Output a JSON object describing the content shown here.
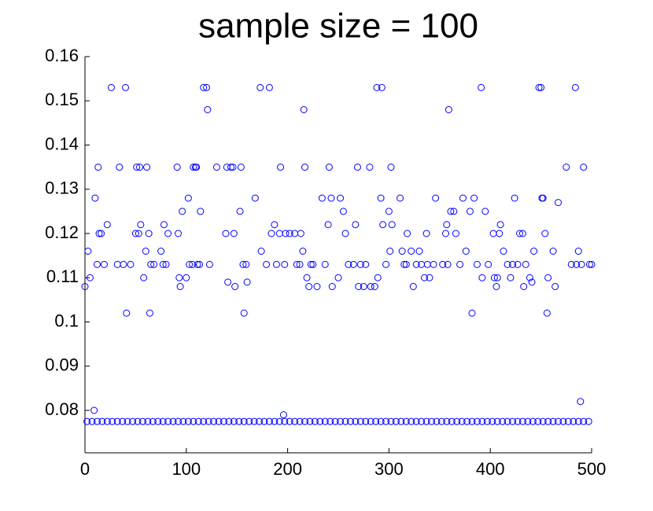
{
  "chart_data": {
    "type": "scatter",
    "title": "sample size = 100",
    "color": "#0000ff",
    "grid": false,
    "xlim": [
      0,
      500
    ],
    "ylim": [
      0.0704,
      0.16
    ],
    "xticks": [
      0,
      100,
      200,
      300,
      400,
      500
    ],
    "yticks": [
      0.16,
      0.15,
      0.14,
      0.13,
      0.12,
      0.11,
      0.1,
      0.09,
      0.08
    ],
    "x": [
      0,
      3,
      5,
      9,
      10,
      12,
      13,
      14,
      16,
      19,
      22,
      26,
      32,
      34,
      38,
      40,
      41,
      45,
      50,
      51,
      53,
      54,
      55,
      58,
      60,
      61,
      63,
      64,
      65,
      68,
      75,
      77,
      78,
      80,
      82,
      91,
      92,
      93,
      94,
      96,
      100,
      102,
      103,
      106,
      107,
      109,
      110,
      111,
      113,
      114,
      117,
      120,
      121,
      123,
      130,
      139,
      140,
      141,
      144,
      146,
      147,
      148,
      153,
      154,
      156,
      157,
      159,
      160,
      168,
      173,
      174,
      179,
      182,
      184,
      187,
      189,
      192,
      193,
      197,
      198,
      202,
      207,
      209,
      212,
      213,
      215,
      216,
      217,
      219,
      221,
      223,
      225,
      229,
      234,
      237,
      240,
      241,
      243,
      244,
      250,
      252,
      255,
      257,
      260,
      265,
      267,
      269,
      270,
      272,
      275,
      277,
      281,
      282,
      286,
      288,
      289,
      292,
      293,
      294,
      297,
      300,
      301,
      302,
      303,
      311,
      313,
      315,
      317,
      318,
      322,
      324,
      327,
      330,
      332,
      335,
      337,
      338,
      340,
      344,
      346,
      353,
      356,
      357,
      358,
      359,
      361,
      364,
      366,
      370,
      373,
      376,
      380,
      382,
      384,
      387,
      391,
      392,
      395,
      398,
      403,
      404,
      406,
      407,
      409,
      410,
      413,
      417,
      420,
      422,
      424,
      427,
      429,
      432,
      433,
      435,
      439,
      441,
      443,
      448,
      450,
      451,
      452,
      454,
      456,
      457,
      462,
      464,
      467,
      475,
      480,
      484,
      485,
      487,
      489,
      490,
      492,
      498,
      500,
      196,
      2,
      7,
      12,
      17,
      22,
      27,
      32,
      37,
      42,
      47,
      52,
      57,
      62,
      67,
      72,
      77,
      82,
      87,
      92,
      97,
      102,
      107,
      112,
      117,
      122,
      127,
      132,
      137,
      142,
      147,
      152,
      157,
      162,
      167,
      172,
      177,
      182,
      187,
      192,
      197,
      202,
      207,
      212,
      217,
      222,
      227,
      232,
      237,
      242,
      247,
      252,
      257,
      262,
      267,
      272,
      277,
      282,
      287,
      292,
      297,
      302,
      307,
      312,
      317,
      322,
      327,
      332,
      337,
      342,
      347,
      352,
      357,
      362,
      367,
      372,
      377,
      382,
      387,
      392,
      397,
      402,
      407,
      412,
      417,
      422,
      427,
      432,
      437,
      442,
      447,
      452,
      457,
      462,
      467,
      472,
      477,
      482,
      487,
      492,
      497
    ],
    "values": [
      0.108,
      0.116,
      0.11,
      0.08,
      0.128,
      0.113,
      0.135,
      0.12,
      0.12,
      0.113,
      0.122,
      0.153,
      0.113,
      0.135,
      0.113,
      0.153,
      0.102,
      0.113,
      0.12,
      0.135,
      0.12,
      0.135,
      0.122,
      0.11,
      0.116,
      0.135,
      0.12,
      0.102,
      0.113,
      0.113,
      0.116,
      0.113,
      0.122,
      0.113,
      0.12,
      0.135,
      0.12,
      0.11,
      0.108,
      0.125,
      0.11,
      0.128,
      0.113,
      0.113,
      0.135,
      0.135,
      0.135,
      0.113,
      0.113,
      0.125,
      0.153,
      0.153,
      0.148,
      0.113,
      0.135,
      0.12,
      0.135,
      0.109,
      0.135,
      0.135,
      0.12,
      0.108,
      0.125,
      0.135,
      0.113,
      0.102,
      0.113,
      0.109,
      0.128,
      0.153,
      0.116,
      0.113,
      0.153,
      0.12,
      0.122,
      0.113,
      0.12,
      0.135,
      0.113,
      0.12,
      0.12,
      0.12,
      0.113,
      0.113,
      0.12,
      0.116,
      0.148,
      0.135,
      0.11,
      0.108,
      0.113,
      0.113,
      0.108,
      0.128,
      0.113,
      0.122,
      0.135,
      0.128,
      0.108,
      0.11,
      0.128,
      0.125,
      0.12,
      0.113,
      0.113,
      0.122,
      0.135,
      0.108,
      0.113,
      0.108,
      0.113,
      0.135,
      0.108,
      0.108,
      0.153,
      0.11,
      0.128,
      0.153,
      0.122,
      0.113,
      0.125,
      0.116,
      0.135,
      0.122,
      0.128,
      0.116,
      0.113,
      0.113,
      0.12,
      0.116,
      0.108,
      0.113,
      0.116,
      0.113,
      0.11,
      0.12,
      0.113,
      0.11,
      0.113,
      0.128,
      0.113,
      0.12,
      0.122,
      0.113,
      0.148,
      0.125,
      0.125,
      0.12,
      0.113,
      0.128,
      0.116,
      0.125,
      0.102,
      0.128,
      0.113,
      0.153,
      0.11,
      0.125,
      0.113,
      0.12,
      0.11,
      0.108,
      0.11,
      0.12,
      0.122,
      0.116,
      0.113,
      0.11,
      0.113,
      0.128,
      0.113,
      0.12,
      0.12,
      0.108,
      0.113,
      0.11,
      0.109,
      0.116,
      0.153,
      0.153,
      0.128,
      0.128,
      0.12,
      0.102,
      0.11,
      0.116,
      0.108,
      0.127,
      0.135,
      0.113,
      0.153,
      0.113,
      0.116,
      0.082,
      0.113,
      0.135,
      0.113,
      0.113,
      0.079,
      0.0775,
      0.0775,
      0.0775,
      0.0775,
      0.0775,
      0.0775,
      0.0775,
      0.0775,
      0.0775,
      0.0775,
      0.0775,
      0.0775,
      0.0775,
      0.0775,
      0.0775,
      0.0775,
      0.0775,
      0.0775,
      0.0775,
      0.0775,
      0.0775,
      0.0775,
      0.0775,
      0.0775,
      0.0775,
      0.0775,
      0.0775,
      0.0775,
      0.0775,
      0.0775,
      0.0775,
      0.0775,
      0.0775,
      0.0775,
      0.0775,
      0.0775,
      0.0775,
      0.0775,
      0.0775,
      0.0775,
      0.0775,
      0.0775,
      0.0775,
      0.0775,
      0.0775,
      0.0775,
      0.0775,
      0.0775,
      0.0775,
      0.0775,
      0.0775,
      0.0775,
      0.0775,
      0.0775,
      0.0775,
      0.0775,
      0.0775,
      0.0775,
      0.0775,
      0.0775,
      0.0775,
      0.0775,
      0.0775,
      0.0775,
      0.0775,
      0.0775,
      0.0775,
      0.0775,
      0.0775,
      0.0775,
      0.0775,
      0.0775,
      0.0775,
      0.0775,
      0.0775,
      0.0775,
      0.0775,
      0.0775,
      0.0775,
      0.0775,
      0.0775,
      0.0775,
      0.0775,
      0.0775,
      0.0775,
      0.0775,
      0.0775,
      0.0775,
      0.0775,
      0.0775,
      0.0775,
      0.0775,
      0.0775,
      0.0775,
      0.0775,
      0.0775,
      0.0775,
      0.0775,
      0.0775,
      0.0775
    ]
  }
}
